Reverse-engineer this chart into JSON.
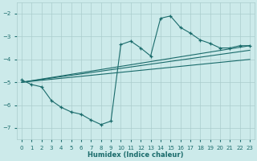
{
  "xlabel": "Humidex (Indice chaleur)",
  "bg_color": "#cceaea",
  "grid_color": "#aacccc",
  "line_color": "#1a6b6b",
  "xlim": [
    -0.5,
    23.5
  ],
  "ylim": [
    -7.5,
    -1.5
  ],
  "yticks": [
    -7,
    -6,
    -5,
    -4,
    -3,
    -2
  ],
  "xticks": [
    0,
    1,
    2,
    3,
    4,
    5,
    6,
    7,
    8,
    9,
    10,
    11,
    12,
    13,
    14,
    15,
    16,
    17,
    18,
    19,
    20,
    21,
    22,
    23
  ],
  "main_x": [
    0,
    1,
    2,
    3,
    4,
    5,
    6,
    7,
    8,
    9,
    10,
    11,
    12,
    13,
    14,
    15,
    16,
    17,
    18,
    19,
    20,
    21,
    22,
    23
  ],
  "main_y": [
    -4.9,
    -5.1,
    -5.2,
    -5.8,
    -6.1,
    -6.3,
    -6.4,
    -6.65,
    -6.85,
    -6.7,
    -3.35,
    -3.2,
    -3.5,
    -3.85,
    -2.2,
    -2.1,
    -2.6,
    -2.85,
    -3.15,
    -3.3,
    -3.5,
    -3.5,
    -3.4,
    -3.4
  ],
  "line2_x": [
    0,
    23
  ],
  "line2_y": [
    -5.0,
    -3.4
  ],
  "line3_x": [
    0,
    23
  ],
  "line3_y": [
    -5.0,
    -3.6
  ],
  "line4_x": [
    0,
    23
  ],
  "line4_y": [
    -5.0,
    -4.0
  ]
}
